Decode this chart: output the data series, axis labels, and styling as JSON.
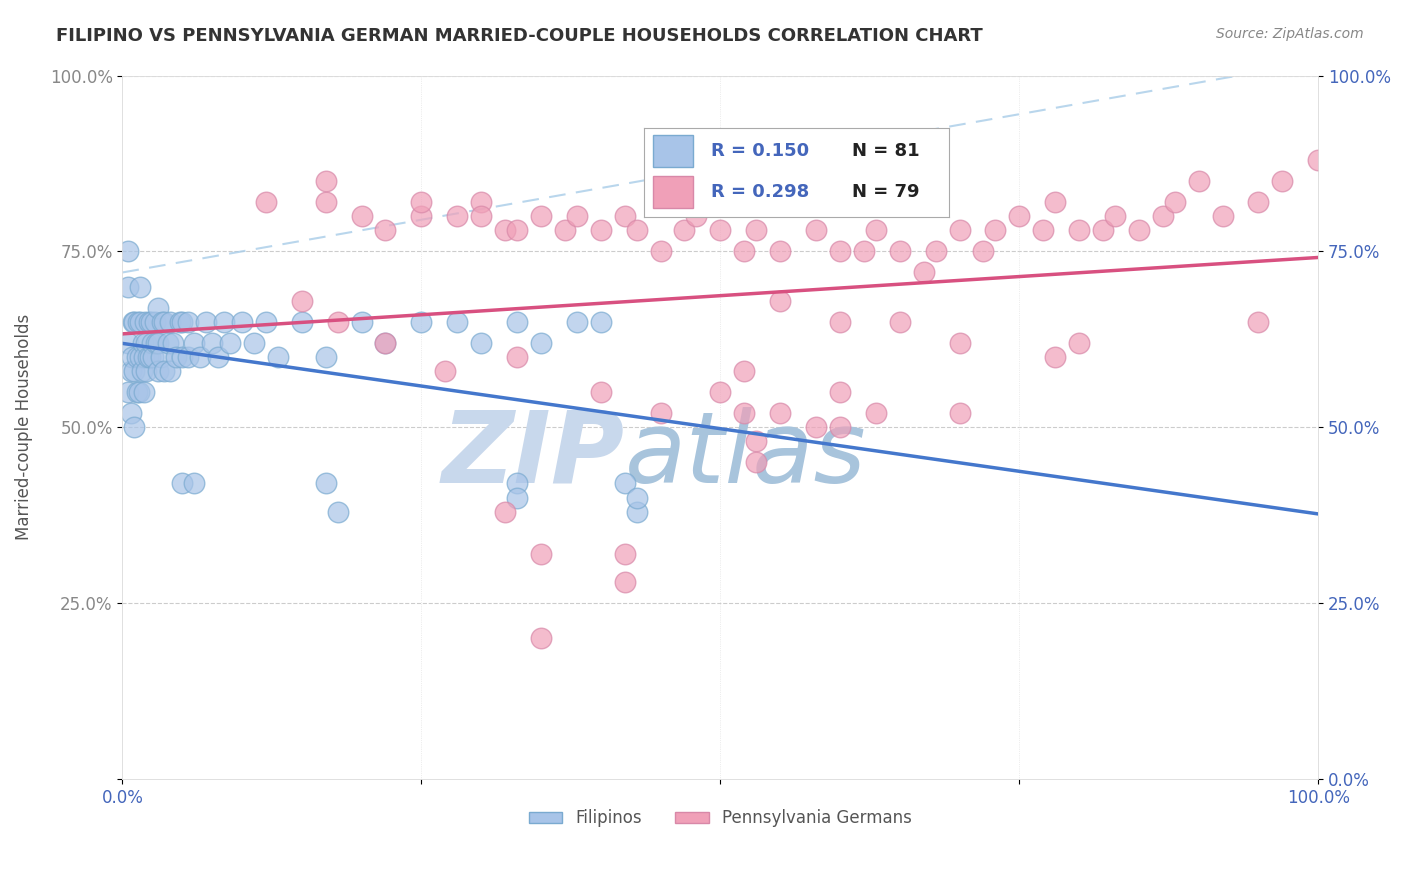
{
  "title": "FILIPINO VS PENNSYLVANIA GERMAN MARRIED-COUPLE HOUSEHOLDS CORRELATION CHART",
  "source": "Source: ZipAtlas.com",
  "ylabel": "Married-couple Households",
  "xlim": [
    0.0,
    1.0
  ],
  "ylim": [
    0.0,
    1.0
  ],
  "filipino_color": "#a8c4e8",
  "filipino_edge": "#7aaad0",
  "penn_color": "#f0a0b8",
  "penn_edge": "#d888a8",
  "trend_filipino_color": "#4477cc",
  "trend_penn_color": "#d85080",
  "diagonal_color": "#a8cce8",
  "background_color": "#ffffff",
  "watermark_zip_color": "#c8d8e8",
  "watermark_atlas_color": "#b8cce0",
  "title_color": "#333333",
  "tick_label_color": "#4466bb",
  "source_color": "#888888",
  "legend_r1": "R = 0.150",
  "legend_n1": "N = 81",
  "legend_r2": "R = 0.298",
  "legend_n2": "N = 79",
  "fil_x": [
    0.005,
    0.005,
    0.005,
    0.005,
    0.007,
    0.007,
    0.008,
    0.009,
    0.01,
    0.01,
    0.01,
    0.012,
    0.012,
    0.013,
    0.014,
    0.015,
    0.015,
    0.015,
    0.016,
    0.017,
    0.018,
    0.018,
    0.019,
    0.02,
    0.02,
    0.021,
    0.022,
    0.023,
    0.024,
    0.025,
    0.026,
    0.027,
    0.028,
    0.03,
    0.03,
    0.03,
    0.032,
    0.033,
    0.035,
    0.035,
    0.038,
    0.04,
    0.04,
    0.042,
    0.045,
    0.048,
    0.05,
    0.05,
    0.055,
    0.055,
    0.06,
    0.065,
    0.07,
    0.075,
    0.08,
    0.085,
    0.09,
    0.1,
    0.11,
    0.12,
    0.13,
    0.15,
    0.17,
    0.2,
    0.22,
    0.25,
    0.28,
    0.3,
    0.33,
    0.35,
    0.38,
    0.4,
    0.05,
    0.06,
    0.17,
    0.18,
    0.33,
    0.33,
    0.42,
    0.43,
    0.43
  ],
  "fil_y": [
    0.55,
    0.62,
    0.7,
    0.75,
    0.52,
    0.58,
    0.6,
    0.65,
    0.5,
    0.58,
    0.65,
    0.55,
    0.6,
    0.65,
    0.55,
    0.6,
    0.65,
    0.7,
    0.58,
    0.62,
    0.55,
    0.6,
    0.65,
    0.58,
    0.62,
    0.6,
    0.65,
    0.6,
    0.65,
    0.62,
    0.6,
    0.65,
    0.62,
    0.58,
    0.62,
    0.67,
    0.6,
    0.65,
    0.58,
    0.65,
    0.62,
    0.58,
    0.65,
    0.62,
    0.6,
    0.65,
    0.6,
    0.65,
    0.6,
    0.65,
    0.62,
    0.6,
    0.65,
    0.62,
    0.6,
    0.65,
    0.62,
    0.65,
    0.62,
    0.65,
    0.6,
    0.65,
    0.6,
    0.65,
    0.62,
    0.65,
    0.65,
    0.62,
    0.65,
    0.62,
    0.65,
    0.65,
    0.42,
    0.42,
    0.42,
    0.38,
    0.42,
    0.4,
    0.42,
    0.38,
    0.4
  ],
  "penn_x": [
    0.12,
    0.17,
    0.17,
    0.2,
    0.22,
    0.25,
    0.25,
    0.28,
    0.3,
    0.3,
    0.32,
    0.33,
    0.35,
    0.37,
    0.38,
    0.4,
    0.42,
    0.43,
    0.45,
    0.47,
    0.48,
    0.5,
    0.52,
    0.53,
    0.55,
    0.58,
    0.6,
    0.62,
    0.63,
    0.65,
    0.67,
    0.68,
    0.7,
    0.72,
    0.73,
    0.75,
    0.77,
    0.78,
    0.8,
    0.82,
    0.83,
    0.85,
    0.87,
    0.88,
    0.9,
    0.92,
    0.95,
    0.97,
    1.0,
    0.15,
    0.18,
    0.22,
    0.27,
    0.33,
    0.4,
    0.45,
    0.52,
    0.6,
    0.7,
    0.78,
    0.55,
    0.6,
    0.65,
    0.7,
    0.53,
    0.53,
    0.32,
    0.35,
    0.42,
    0.42,
    0.35,
    0.5,
    0.52,
    0.55,
    0.58,
    0.6,
    0.63,
    0.8,
    0.95
  ],
  "penn_y": [
    0.82,
    0.82,
    0.85,
    0.8,
    0.78,
    0.8,
    0.82,
    0.8,
    0.82,
    0.8,
    0.78,
    0.78,
    0.8,
    0.78,
    0.8,
    0.78,
    0.8,
    0.78,
    0.75,
    0.78,
    0.8,
    0.78,
    0.75,
    0.78,
    0.75,
    0.78,
    0.75,
    0.75,
    0.78,
    0.75,
    0.72,
    0.75,
    0.78,
    0.75,
    0.78,
    0.8,
    0.78,
    0.82,
    0.78,
    0.78,
    0.8,
    0.78,
    0.8,
    0.82,
    0.85,
    0.8,
    0.82,
    0.85,
    0.88,
    0.68,
    0.65,
    0.62,
    0.58,
    0.6,
    0.55,
    0.52,
    0.58,
    0.55,
    0.52,
    0.6,
    0.68,
    0.65,
    0.65,
    0.62,
    0.48,
    0.45,
    0.38,
    0.32,
    0.32,
    0.28,
    0.2,
    0.55,
    0.52,
    0.52,
    0.5,
    0.5,
    0.52,
    0.62,
    0.65
  ]
}
